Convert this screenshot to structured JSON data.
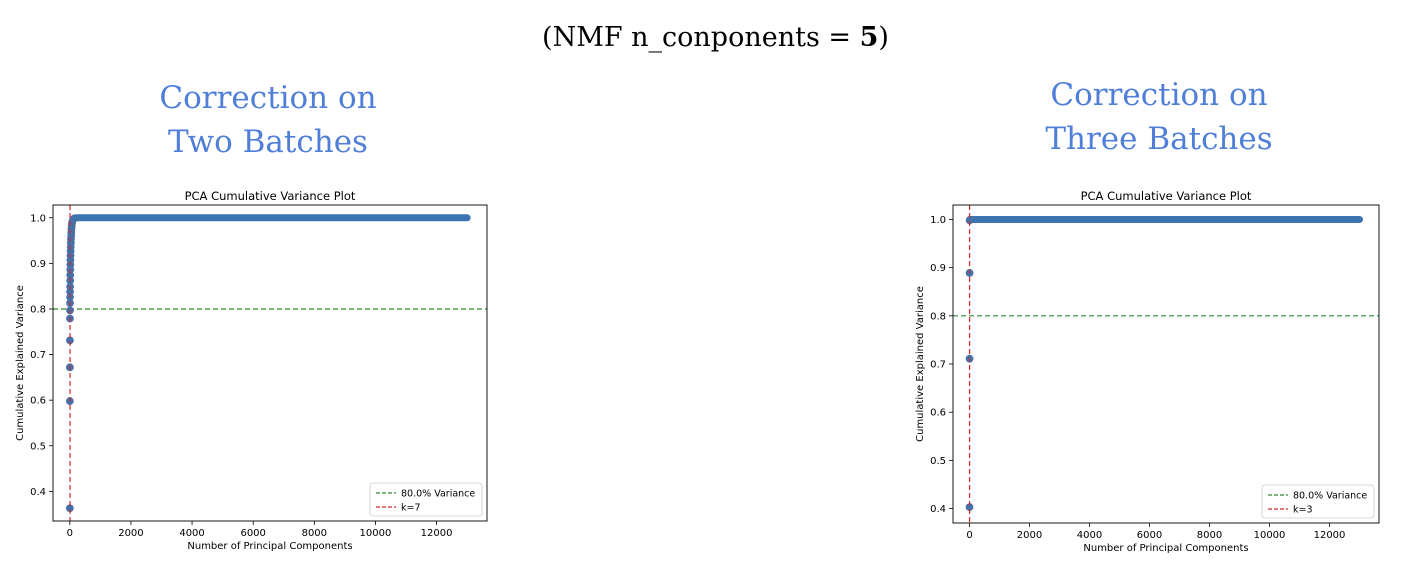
{
  "header": {
    "prefix": "(NMF n_conponents = ",
    "value": "5",
    "suffix": ")"
  },
  "headings": [
    {
      "line1": "Correction on",
      "line2": "Two Batches"
    },
    {
      "line1": "Correction on",
      "line2": "Three Batches"
    }
  ],
  "colors": {
    "heading": "#4f7fd8",
    "points": "#3b74b0",
    "point_edge": "#5a6e9a",
    "threshold": "#2e8b2e",
    "k_line": "#d62728"
  },
  "chart_data": [
    {
      "type": "scatter",
      "title": "PCA Cumulative Variance Plot",
      "xlabel": "Number of Principal Components",
      "ylabel": "Cumulative Explained Variance",
      "xlim": [
        -550,
        13650
      ],
      "ylim": [
        0.335,
        1.028
      ],
      "xticks": [
        0,
        2000,
        4000,
        6000,
        8000,
        10000,
        12000
      ],
      "xtick_labels": [
        "0",
        "2000",
        "4000",
        "6000",
        "8000",
        "10000",
        "12000"
      ],
      "yticks": [
        0.4,
        0.5,
        0.6,
        0.7,
        0.8,
        0.9,
        1.0
      ],
      "ytick_labels": [
        "0.4",
        "0.5",
        "0.6",
        "0.7",
        "0.8",
        "0.9",
        "1.0"
      ],
      "points": [
        [
          1,
          0.363
        ],
        [
          2,
          0.598
        ],
        [
          3,
          0.672
        ],
        [
          4,
          0.731
        ],
        [
          5,
          0.779
        ],
        [
          6,
          0.797
        ],
        [
          7,
          0.813
        ],
        [
          8,
          0.826
        ],
        [
          9,
          0.838
        ],
        [
          10,
          0.849
        ],
        [
          12,
          0.862
        ],
        [
          14,
          0.874
        ],
        [
          16,
          0.886
        ],
        [
          18,
          0.897
        ],
        [
          20,
          0.907
        ],
        [
          23,
          0.917
        ],
        [
          26,
          0.927
        ],
        [
          30,
          0.936
        ],
        [
          34,
          0.945
        ],
        [
          38,
          0.953
        ],
        [
          43,
          0.961
        ],
        [
          48,
          0.968
        ],
        [
          54,
          0.975
        ],
        [
          60,
          0.981
        ],
        [
          70,
          0.987
        ],
        [
          85,
          0.992
        ],
        [
          110,
          0.996
        ],
        [
          150,
          0.999
        ]
      ],
      "plateau": {
        "x_start": 200,
        "x_end": 13000,
        "y": 1.0
      },
      "threshold": {
        "y": 0.8,
        "label": "80.0% Variance"
      },
      "k_line": {
        "x": 7,
        "label": "k=7"
      },
      "legend": "lower-right",
      "grid": false
    },
    {
      "type": "scatter",
      "title": "PCA Cumulative Variance Plot",
      "xlabel": "Number of Principal Components",
      "ylabel": "Cumulative Explained Variance",
      "xlim": [
        -550,
        13650
      ],
      "ylim": [
        0.37,
        1.03
      ],
      "xticks": [
        0,
        2000,
        4000,
        6000,
        8000,
        10000,
        12000
      ],
      "xtick_labels": [
        "0",
        "2000",
        "4000",
        "6000",
        "8000",
        "10000",
        "12000"
      ],
      "yticks": [
        0.4,
        0.5,
        0.6,
        0.7,
        0.8,
        0.9,
        1.0
      ],
      "ytick_labels": [
        "0.4",
        "0.5",
        "0.6",
        "0.7",
        "0.8",
        "0.9",
        "1.0"
      ],
      "points": [
        [
          1,
          0.403
        ],
        [
          2,
          0.711
        ],
        [
          3,
          0.889
        ],
        [
          4,
          0.998
        ]
      ],
      "plateau": {
        "x_start": 5,
        "x_end": 13000,
        "y": 1.0
      },
      "threshold": {
        "y": 0.8,
        "label": "80.0% Variance"
      },
      "k_line": {
        "x": 3,
        "label": "k=3"
      },
      "legend": "lower-right",
      "grid": false
    }
  ]
}
